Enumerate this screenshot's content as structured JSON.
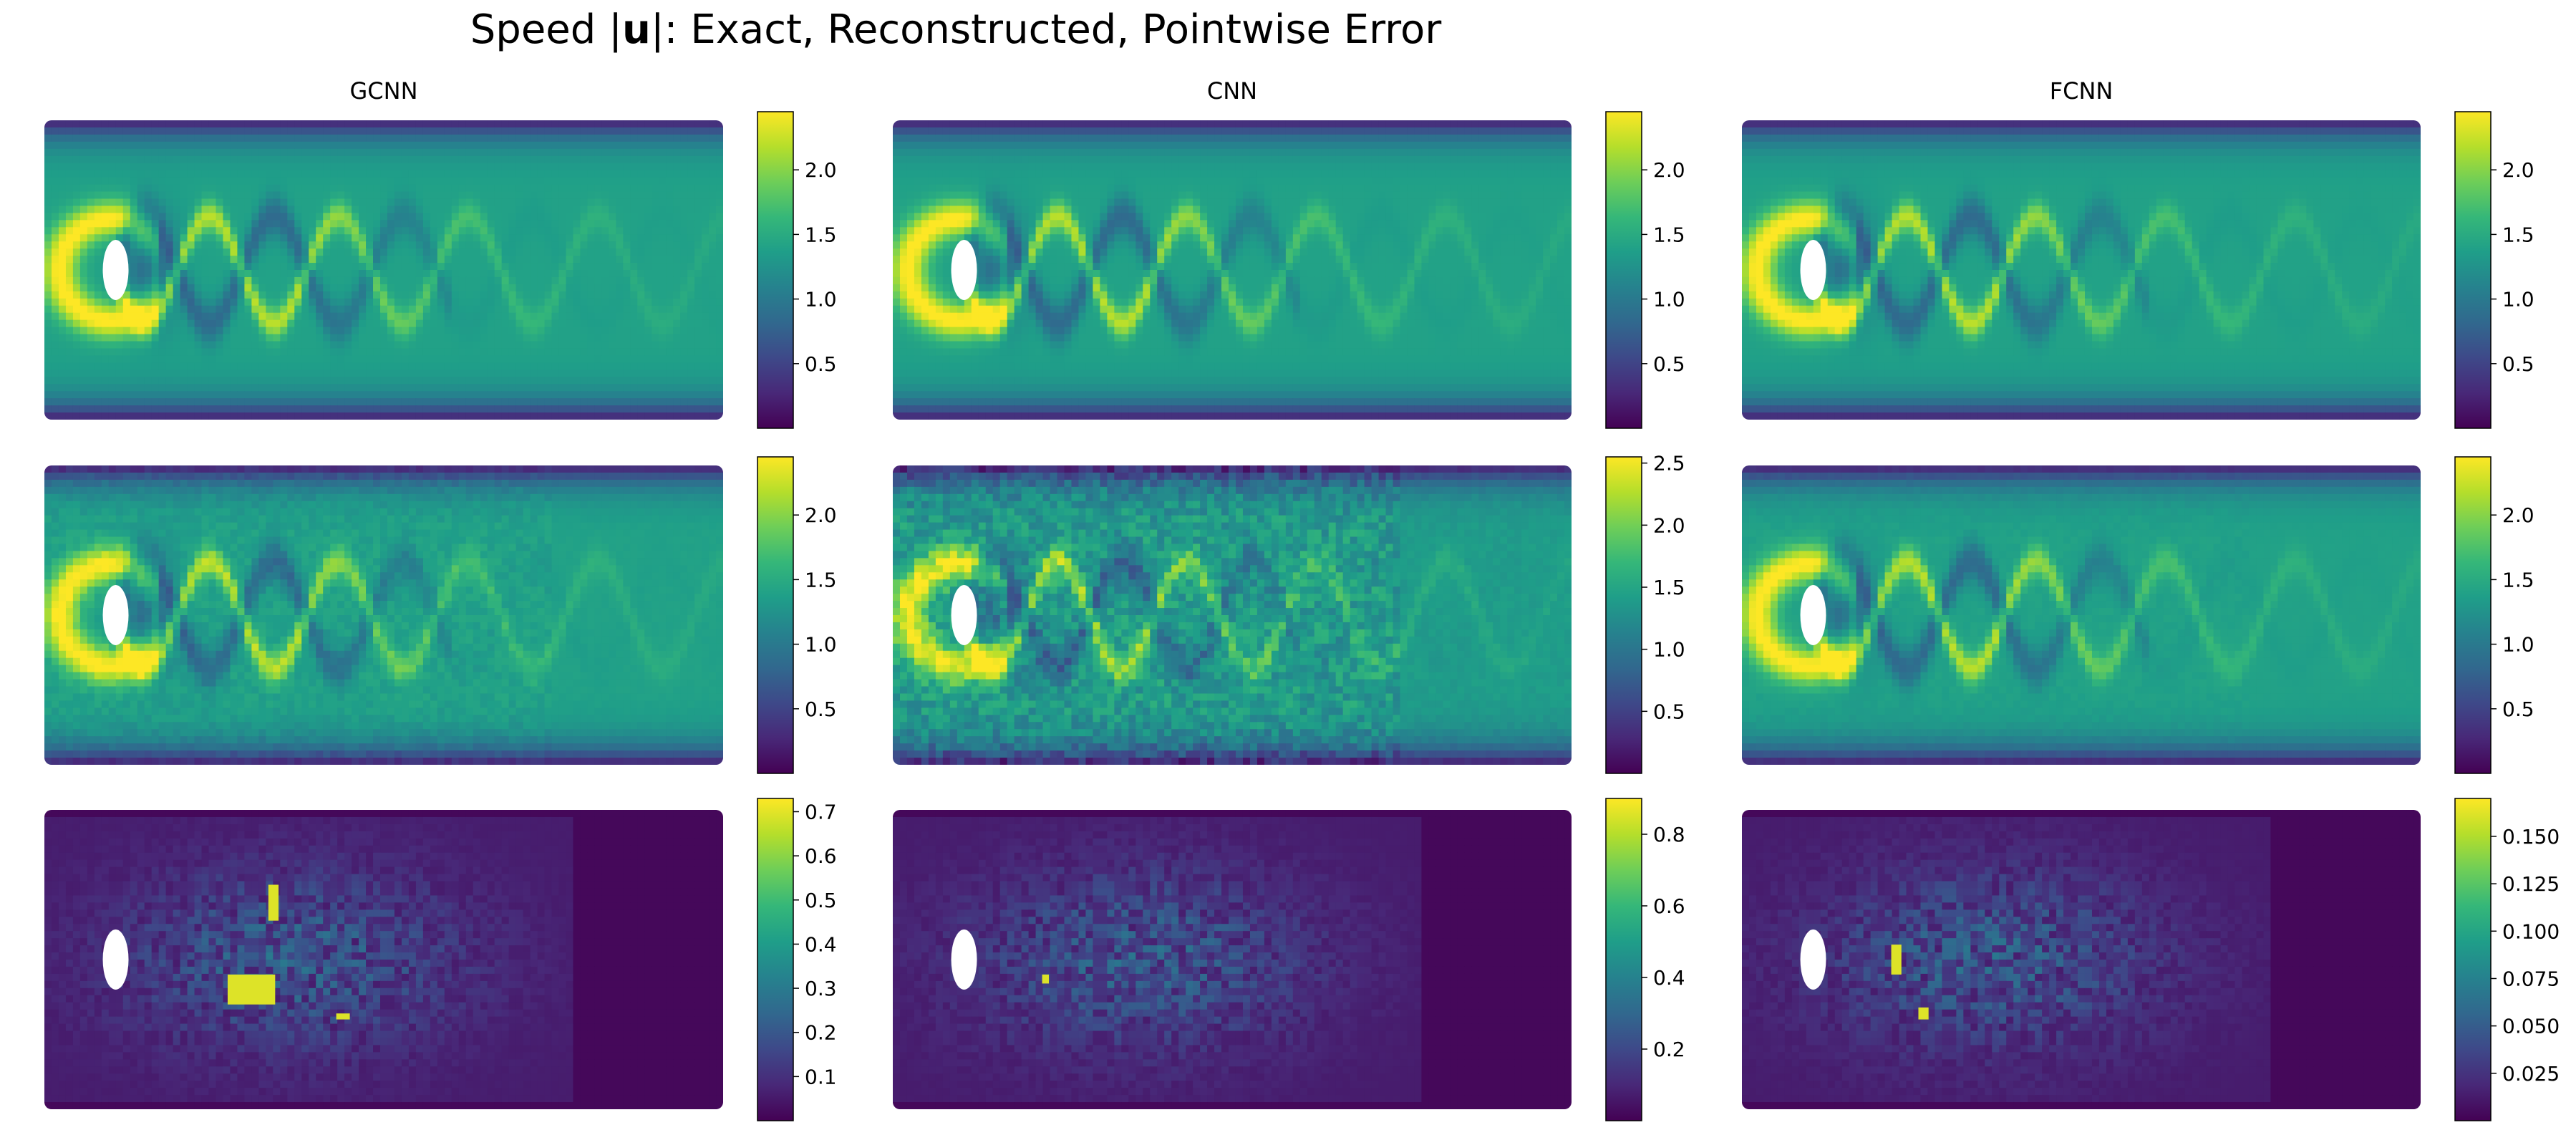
{
  "title_prefix": "Speed |",
  "title_symbol": "u",
  "title_suffix": "|: Exact, Reconstructed, Pointwise Error",
  "colormap": "viridis",
  "colormap_stops": [
    "#440154",
    "#482878",
    "#3e4989",
    "#31688e",
    "#26828e",
    "#1f9e89",
    "#35b779",
    "#6ece58",
    "#b5de2b",
    "#fde725"
  ],
  "columns": [
    "GCNN",
    "CNN",
    "FCNN"
  ],
  "chart_data": [
    {
      "type": "heatmap",
      "column": "GCNN",
      "row": "exact",
      "clim": [
        0.0,
        2.45
      ],
      "colorbar_ticks": [
        0.5,
        1.0,
        1.5,
        2.0
      ],
      "colorbar_tick_labels": [
        "0.5",
        "1.0",
        "1.5",
        "2.0"
      ],
      "style": "flow",
      "noise": 0
    },
    {
      "type": "heatmap",
      "column": "CNN",
      "row": "exact",
      "clim": [
        0.0,
        2.45
      ],
      "colorbar_ticks": [
        0.5,
        1.0,
        1.5,
        2.0
      ],
      "colorbar_tick_labels": [
        "0.5",
        "1.0",
        "1.5",
        "2.0"
      ],
      "style": "flow",
      "noise": 0
    },
    {
      "type": "heatmap",
      "column": "FCNN",
      "row": "exact",
      "clim": [
        0.0,
        2.45
      ],
      "colorbar_ticks": [
        0.5,
        1.0,
        1.5,
        2.0
      ],
      "colorbar_tick_labels": [
        "0.5",
        "1.0",
        "1.5",
        "2.0"
      ],
      "style": "flow",
      "noise": 0
    },
    {
      "type": "heatmap",
      "column": "GCNN",
      "row": "reconstructed",
      "clim": [
        0.0,
        2.45
      ],
      "colorbar_ticks": [
        0.5,
        1.0,
        1.5,
        2.0
      ],
      "colorbar_tick_labels": [
        "0.5",
        "1.0",
        "1.5",
        "2.0"
      ],
      "style": "flow",
      "noise": 0.08
    },
    {
      "type": "heatmap",
      "column": "CNN",
      "row": "reconstructed",
      "clim": [
        0.0,
        2.55
      ],
      "colorbar_ticks": [
        0.5,
        1.0,
        1.5,
        2.0,
        2.5
      ],
      "colorbar_tick_labels": [
        "0.5",
        "1.0",
        "1.5",
        "2.0",
        "2.5"
      ],
      "style": "flow",
      "noise": 0.25
    },
    {
      "type": "heatmap",
      "column": "FCNN",
      "row": "reconstructed",
      "clim": [
        0.0,
        2.45
      ],
      "colorbar_ticks": [
        0.5,
        1.0,
        1.5,
        2.0
      ],
      "colorbar_tick_labels": [
        "0.5",
        "1.0",
        "1.5",
        "2.0"
      ],
      "style": "flow",
      "noise": 0.03
    },
    {
      "type": "heatmap",
      "column": "GCNN",
      "row": "pointwise_error",
      "clim": [
        0.0,
        0.73
      ],
      "colorbar_ticks": [
        0.1,
        0.2,
        0.3,
        0.4,
        0.5,
        0.6,
        0.7
      ],
      "colorbar_tick_labels": [
        "0.1",
        "0.2",
        "0.3",
        "0.4",
        "0.5",
        "0.6",
        "0.7"
      ],
      "style": "error",
      "error_peak": 0.7
    },
    {
      "type": "heatmap",
      "column": "CNN",
      "row": "pointwise_error",
      "clim": [
        0.0,
        0.9
      ],
      "colorbar_ticks": [
        0.2,
        0.4,
        0.6,
        0.8
      ],
      "colorbar_tick_labels": [
        "0.2",
        "0.4",
        "0.6",
        "0.8"
      ],
      "style": "error",
      "error_peak": 0.85
    },
    {
      "type": "heatmap",
      "column": "FCNN",
      "row": "pointwise_error",
      "clim": [
        0.0,
        0.17
      ],
      "colorbar_ticks": [
        0.025,
        0.05,
        0.075,
        0.1,
        0.125,
        0.15
      ],
      "colorbar_tick_labels": [
        "0.025",
        "0.050",
        "0.075",
        "0.100",
        "0.125",
        "0.150"
      ],
      "style": "error",
      "error_peak": 0.16
    }
  ]
}
